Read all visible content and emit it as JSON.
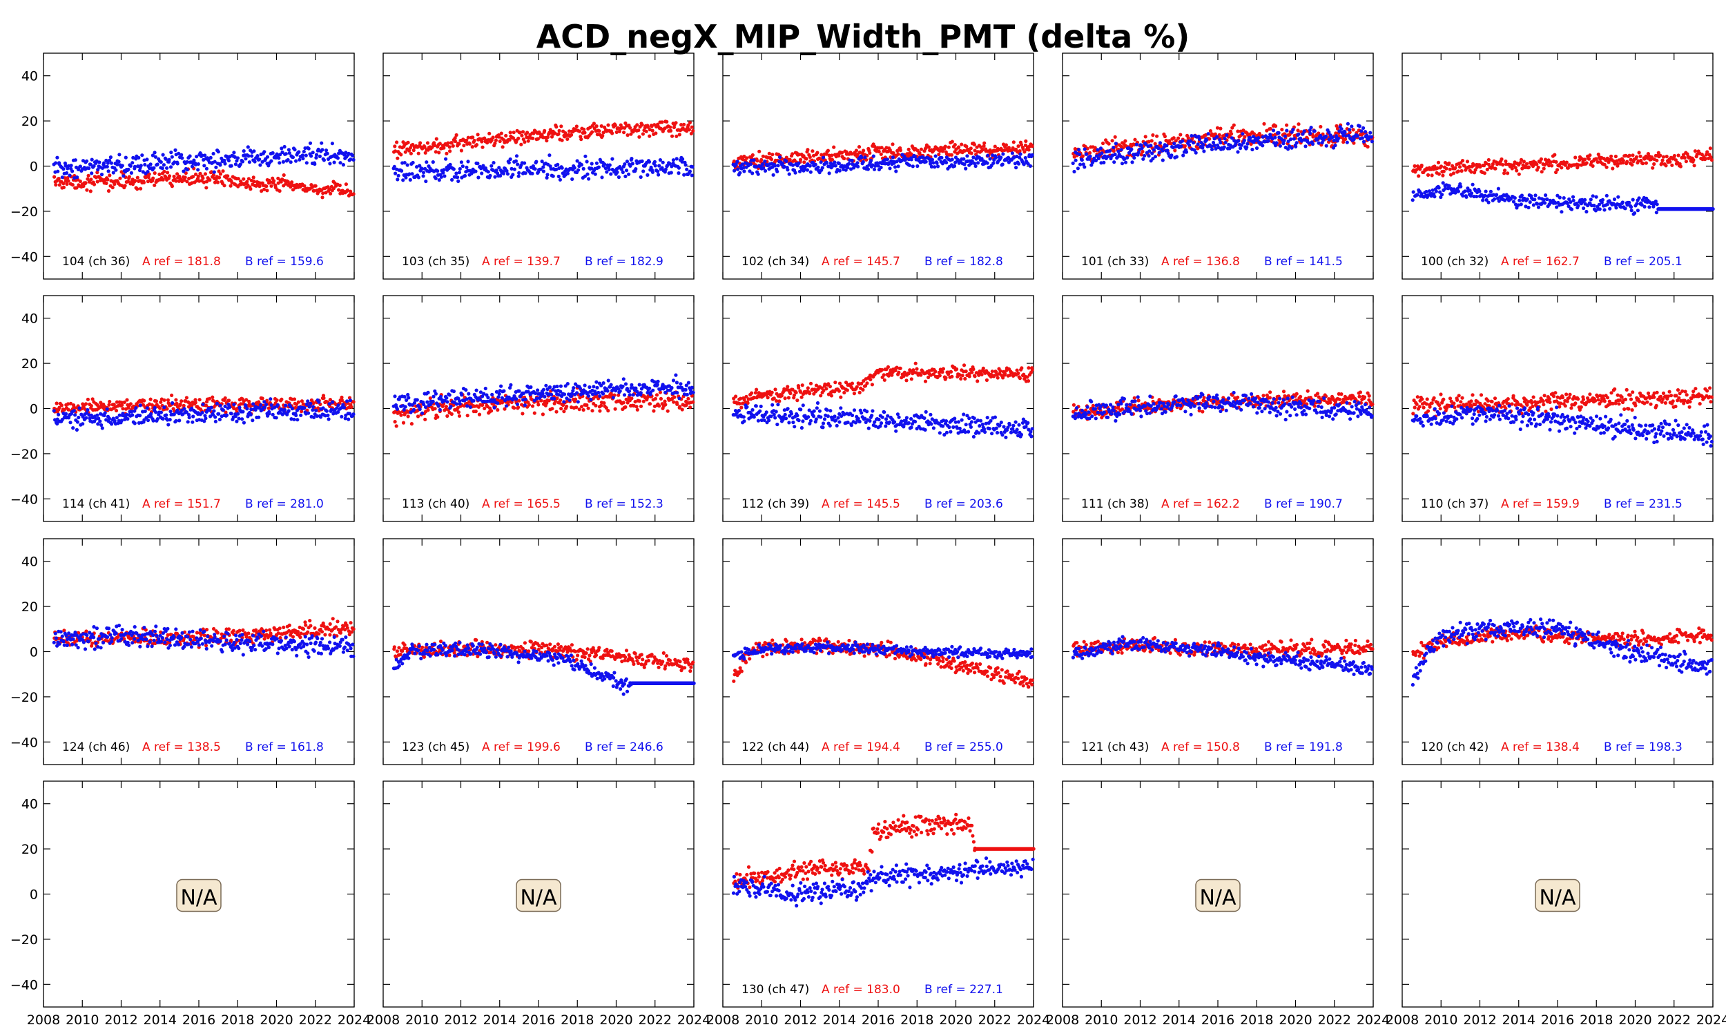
{
  "title": "ACD_negX_MIP_Width_PMT (delta %)",
  "colors": {
    "series_a": "#ee1111",
    "series_b": "#1111ee",
    "na_fill": "#f5e8d0",
    "na_stroke": "#7a6a55"
  },
  "chart_data": {
    "type": "scatter",
    "title": "ACD_negX_MIP_Width_PMT (delta %)",
    "layout": "4 rows x 5 columns of panels",
    "xlim": [
      2008,
      2024
    ],
    "ylim": [
      -50,
      50
    ],
    "xticks": [
      2008,
      2010,
      2012,
      2014,
      2016,
      2018,
      2020,
      2022,
      2024
    ],
    "yticks": [
      -40,
      -20,
      0,
      20,
      40
    ],
    "na_label": "N/A",
    "series_names": [
      "A",
      "B"
    ],
    "panels": [
      {
        "tile": "104",
        "ch": "104 (ch 36)",
        "a_ref": "A ref = 181.8",
        "b_ref": "B ref = 159.6",
        "a_trend": [
          [
            2008.5,
            -7
          ],
          [
            2012,
            -7
          ],
          [
            2016,
            -5
          ],
          [
            2020,
            -8
          ],
          [
            2024,
            -12
          ]
        ],
        "a_noise": 3,
        "b_trend": [
          [
            2008.5,
            -1
          ],
          [
            2012,
            0
          ],
          [
            2016,
            3
          ],
          [
            2020,
            4
          ],
          [
            2024,
            6
          ]
        ],
        "b_noise": 4
      },
      {
        "tile": "103",
        "ch": "103 (ch 35)",
        "a_ref": "A ref = 139.7",
        "b_ref": "B ref = 182.9",
        "a_trend": [
          [
            2008.5,
            7
          ],
          [
            2012,
            10
          ],
          [
            2016,
            14
          ],
          [
            2020,
            16
          ],
          [
            2024,
            17
          ]
        ],
        "a_noise": 3,
        "b_trend": [
          [
            2008.5,
            -3
          ],
          [
            2012,
            -2
          ],
          [
            2016,
            -1
          ],
          [
            2020,
            -1
          ],
          [
            2024,
            0
          ]
        ],
        "b_noise": 4
      },
      {
        "tile": "102",
        "ch": "102 (ch 34)",
        "a_ref": "A ref = 145.7",
        "b_ref": "B ref = 182.8",
        "a_trend": [
          [
            2008.5,
            2
          ],
          [
            2012,
            4
          ],
          [
            2016,
            6
          ],
          [
            2020,
            7
          ],
          [
            2024,
            8
          ]
        ],
        "a_noise": 3,
        "b_trend": [
          [
            2008.5,
            -1
          ],
          [
            2012,
            0
          ],
          [
            2016,
            1
          ],
          [
            2020,
            2
          ],
          [
            2024,
            3
          ]
        ],
        "b_noise": 3
      },
      {
        "tile": "101",
        "ch": "101 (ch 33)",
        "a_ref": "A ref = 136.8",
        "b_ref": "B ref = 141.5",
        "a_trend": [
          [
            2008.5,
            6
          ],
          [
            2012,
            8
          ],
          [
            2016,
            13
          ],
          [
            2020,
            14
          ],
          [
            2024,
            13
          ]
        ],
        "a_noise": 4,
        "b_trend": [
          [
            2008.5,
            3
          ],
          [
            2012,
            6
          ],
          [
            2016,
            10
          ],
          [
            2020,
            12
          ],
          [
            2024,
            14
          ]
        ],
        "b_noise": 4
      },
      {
        "tile": "100",
        "ch": "100 (ch 32)",
        "a_ref": "A ref = 162.7",
        "b_ref": "B ref = 205.1",
        "a_trend": [
          [
            2008.5,
            -2
          ],
          [
            2012,
            0
          ],
          [
            2016,
            1
          ],
          [
            2020,
            3
          ],
          [
            2024,
            4
          ]
        ],
        "a_noise": 3,
        "b_trend": [
          [
            2008.5,
            -14
          ],
          [
            2010,
            -10
          ],
          [
            2014,
            -15
          ],
          [
            2018,
            -17
          ],
          [
            2021,
            -17
          ],
          [
            2024,
            -19
          ]
        ],
        "b_noise": 3,
        "b_flat": {
          "from": 2021.2,
          "to": 2024,
          "value": -19
        }
      },
      {
        "tile": "114",
        "ch": "114 (ch 41)",
        "a_ref": "A ref = 151.7",
        "b_ref": "B ref = 281.0",
        "a_trend": [
          [
            2008.5,
            0
          ],
          [
            2012,
            1
          ],
          [
            2016,
            2
          ],
          [
            2020,
            2
          ],
          [
            2024,
            2
          ]
        ],
        "a_noise": 3,
        "b_trend": [
          [
            2008.5,
            -4
          ],
          [
            2012,
            -4
          ],
          [
            2016,
            -2
          ],
          [
            2020,
            -1
          ],
          [
            2024,
            -1
          ]
        ],
        "b_noise": 4
      },
      {
        "tile": "113",
        "ch": "113 (ch 40)",
        "a_ref": "A ref = 165.5",
        "b_ref": "B ref = 152.3",
        "a_trend": [
          [
            2008.5,
            -2
          ],
          [
            2012,
            1
          ],
          [
            2016,
            3
          ],
          [
            2020,
            3
          ],
          [
            2024,
            3
          ]
        ],
        "a_noise": 4,
        "b_trend": [
          [
            2008.5,
            2
          ],
          [
            2012,
            4
          ],
          [
            2016,
            6
          ],
          [
            2020,
            9
          ],
          [
            2024,
            10
          ]
        ],
        "b_noise": 4
      },
      {
        "tile": "112",
        "ch": "112 (ch 39)",
        "a_ref": "A ref = 145.5",
        "b_ref": "B ref = 203.6",
        "a_trend": [
          [
            2008.5,
            4
          ],
          [
            2012,
            8
          ],
          [
            2015,
            9
          ],
          [
            2016,
            16
          ],
          [
            2020,
            16
          ],
          [
            2024,
            15
          ]
        ],
        "a_noise": 3,
        "b_trend": [
          [
            2008.5,
            -2
          ],
          [
            2012,
            -3
          ],
          [
            2016,
            -5
          ],
          [
            2020,
            -7
          ],
          [
            2024,
            -9
          ]
        ],
        "b_noise": 4
      },
      {
        "tile": "111",
        "ch": "111 (ch 38)",
        "a_ref": "A ref = 162.2",
        "b_ref": "B ref = 190.7",
        "a_trend": [
          [
            2008.5,
            -2
          ],
          [
            2012,
            1
          ],
          [
            2016,
            3
          ],
          [
            2020,
            4
          ],
          [
            2024,
            4
          ]
        ],
        "a_noise": 3,
        "b_trend": [
          [
            2008.5,
            -3
          ],
          [
            2012,
            1
          ],
          [
            2016,
            3
          ],
          [
            2020,
            1
          ],
          [
            2024,
            -2
          ]
        ],
        "b_noise": 4
      },
      {
        "tile": "110",
        "ch": "110 (ch 37)",
        "a_ref": "A ref = 159.9",
        "b_ref": "B ref = 231.5",
        "a_trend": [
          [
            2008.5,
            1
          ],
          [
            2012,
            2
          ],
          [
            2016,
            3
          ],
          [
            2020,
            4
          ],
          [
            2024,
            5
          ]
        ],
        "a_noise": 4,
        "b_trend": [
          [
            2008.5,
            -5
          ],
          [
            2012,
            -2
          ],
          [
            2016,
            -5
          ],
          [
            2020,
            -9
          ],
          [
            2024,
            -12
          ]
        ],
        "b_noise": 4
      },
      {
        "tile": "124",
        "ch": "124 (ch 46)",
        "a_ref": "A ref = 138.5",
        "b_ref": "B ref = 161.8",
        "a_trend": [
          [
            2008.5,
            5
          ],
          [
            2012,
            6
          ],
          [
            2016,
            6
          ],
          [
            2020,
            8
          ],
          [
            2024,
            11
          ]
        ],
        "a_noise": 3,
        "b_trend": [
          [
            2008.5,
            4
          ],
          [
            2012,
            8
          ],
          [
            2016,
            5
          ],
          [
            2020,
            3
          ],
          [
            2024,
            2
          ]
        ],
        "b_noise": 4
      },
      {
        "tile": "123",
        "ch": "123 (ch 45)",
        "a_ref": "A ref = 199.6",
        "b_ref": "B ref = 246.6",
        "a_trend": [
          [
            2008.5,
            0
          ],
          [
            2012,
            1
          ],
          [
            2016,
            1
          ],
          [
            2020,
            -2
          ],
          [
            2024,
            -6
          ]
        ],
        "a_noise": 3,
        "b_trend": [
          [
            2008.5,
            -8
          ],
          [
            2009.5,
            1
          ],
          [
            2013,
            1
          ],
          [
            2017,
            -3
          ],
          [
            2019,
            -10
          ],
          [
            2020.5,
            -15
          ],
          [
            2024,
            -14
          ]
        ],
        "b_noise": 3,
        "b_flat": {
          "from": 2020.8,
          "to": 2024,
          "value": -14
        }
      },
      {
        "tile": "122",
        "ch": "122 (ch 44)",
        "a_ref": "A ref = 194.4",
        "b_ref": "B ref = 255.0",
        "a_trend": [
          [
            2008.5,
            -12
          ],
          [
            2009.5,
            1
          ],
          [
            2012,
            3
          ],
          [
            2016,
            1
          ],
          [
            2020,
            -6
          ],
          [
            2024,
            -13
          ]
        ],
        "a_noise": 3,
        "b_trend": [
          [
            2008.5,
            -2
          ],
          [
            2010,
            1
          ],
          [
            2014,
            2
          ],
          [
            2018,
            0
          ],
          [
            2024,
            -1
          ]
        ],
        "b_noise": 2
      },
      {
        "tile": "121",
        "ch": "121 (ch 43)",
        "a_ref": "A ref = 150.8",
        "b_ref": "B ref = 191.8",
        "a_trend": [
          [
            2008.5,
            1
          ],
          [
            2012,
            3
          ],
          [
            2016,
            1
          ],
          [
            2020,
            1
          ],
          [
            2024,
            2
          ]
        ],
        "a_noise": 3,
        "b_trend": [
          [
            2008.5,
            0
          ],
          [
            2012,
            4
          ],
          [
            2016,
            0
          ],
          [
            2020,
            -4
          ],
          [
            2024,
            -8
          ]
        ],
        "b_noise": 3
      },
      {
        "tile": "120",
        "ch": "120 (ch 42)",
        "a_ref": "A ref = 138.4",
        "b_ref": "B ref = 198.3",
        "a_trend": [
          [
            2008.5,
            -2
          ],
          [
            2010,
            4
          ],
          [
            2013,
            8
          ],
          [
            2016,
            7
          ],
          [
            2020,
            5
          ],
          [
            2024,
            7
          ]
        ],
        "a_noise": 3,
        "b_trend": [
          [
            2008.5,
            -12
          ],
          [
            2010,
            7
          ],
          [
            2013,
            11
          ],
          [
            2016,
            10
          ],
          [
            2020,
            0
          ],
          [
            2024,
            -7
          ]
        ],
        "b_noise": 4
      },
      {
        "na": true
      },
      {
        "na": true
      },
      {
        "tile": "130",
        "ch": "130 (ch 47)",
        "a_ref": "A ref = 183.0",
        "b_ref": "B ref = 227.1",
        "a_trend": [
          [
            2008.5,
            6
          ],
          [
            2012,
            10
          ],
          [
            2015.5,
            12
          ],
          [
            2015.8,
            29
          ],
          [
            2020.8,
            31
          ],
          [
            2021,
            20
          ],
          [
            2024,
            20
          ]
        ],
        "a_noise": 4,
        "a_flat": {
          "from": 2021,
          "to": 2024,
          "value": 20
        },
        "b_trend": [
          [
            2008.5,
            3
          ],
          [
            2012,
            0
          ],
          [
            2015,
            2
          ],
          [
            2016,
            8
          ],
          [
            2020,
            10
          ],
          [
            2024,
            12
          ]
        ],
        "b_noise": 4
      },
      {
        "na": true
      },
      {
        "na": true
      }
    ]
  }
}
